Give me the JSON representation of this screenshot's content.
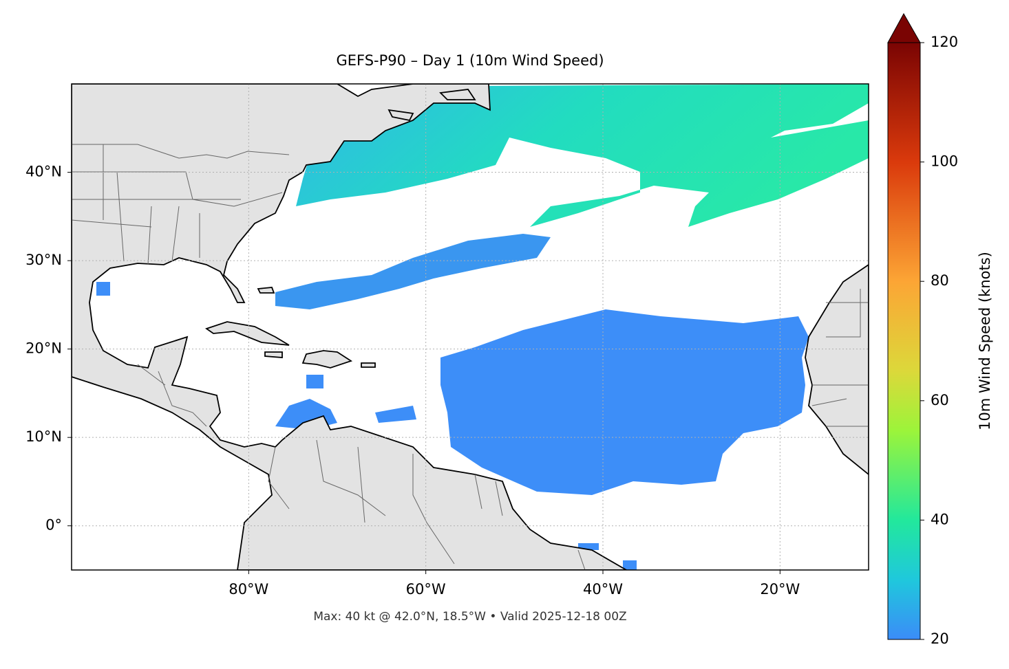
{
  "title": "GEFS-P90 – Day 1 (10m Wind Speed)",
  "footnote": "Max: 40 kt @ 42.0°N, 18.5°W • Valid 2025-12-18 00Z",
  "map": {
    "xlim": [
      -100,
      -10
    ],
    "ylim": [
      -5,
      50
    ],
    "xticks": [
      {
        "value": -80,
        "label": "80°W"
      },
      {
        "value": -60,
        "label": "60°W"
      },
      {
        "value": -40,
        "label": "40°W"
      },
      {
        "value": -20,
        "label": "20°W"
      }
    ],
    "yticks": [
      {
        "value": 0,
        "label": "0°"
      },
      {
        "value": 10,
        "label": "10°N"
      },
      {
        "value": 20,
        "label": "20°N"
      },
      {
        "value": 30,
        "label": "30°N"
      },
      {
        "value": 40,
        "label": "40°N"
      }
    ]
  },
  "colorbar": {
    "label": "10m Wind Speed (knots)",
    "lim": [
      20,
      120
    ],
    "ticks": [
      20,
      40,
      60,
      80,
      100,
      120
    ]
  }
}
